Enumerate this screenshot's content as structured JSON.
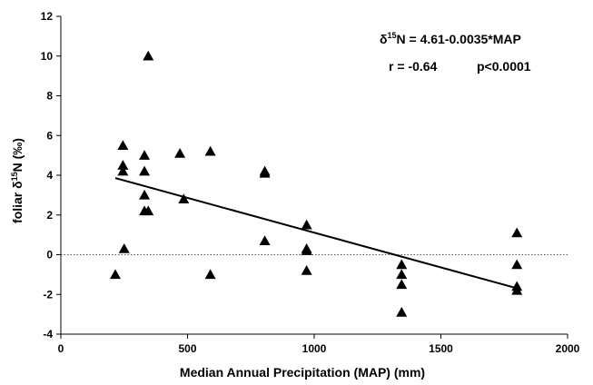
{
  "chart_data": {
    "type": "scatter",
    "xlabel": "Median Annual Precipitation (MAP) (mm)",
    "ylabel": {
      "pre": "foliar δ",
      "sup": "15",
      "post": "N (‰)"
    },
    "xlim": [
      0,
      2000
    ],
    "ylim": [
      -4,
      12
    ],
    "x_ticks": [
      0,
      500,
      1000,
      1500,
      2000
    ],
    "y_ticks": [
      -4,
      -2,
      0,
      2,
      4,
      6,
      8,
      10,
      12
    ],
    "grid": false,
    "reference_line_y": 0,
    "marker": "filled-triangle",
    "points": [
      {
        "x": 215,
        "y": -1.0
      },
      {
        "x": 245,
        "y": 5.5
      },
      {
        "x": 245,
        "y": 4.5
      },
      {
        "x": 245,
        "y": 4.2
      },
      {
        "x": 250,
        "y": 0.3
      },
      {
        "x": 330,
        "y": 5.0
      },
      {
        "x": 330,
        "y": 4.2
      },
      {
        "x": 330,
        "y": 3.0
      },
      {
        "x": 330,
        "y": 2.2
      },
      {
        "x": 345,
        "y": 2.2
      },
      {
        "x": 345,
        "y": 10.0
      },
      {
        "x": 470,
        "y": 5.1
      },
      {
        "x": 485,
        "y": 2.8
      },
      {
        "x": 590,
        "y": 5.2
      },
      {
        "x": 590,
        "y": -1.0
      },
      {
        "x": 805,
        "y": 4.2
      },
      {
        "x": 805,
        "y": 4.1
      },
      {
        "x": 805,
        "y": 0.7
      },
      {
        "x": 970,
        "y": 1.5
      },
      {
        "x": 970,
        "y": 0.3
      },
      {
        "x": 970,
        "y": 0.2
      },
      {
        "x": 970,
        "y": -0.8
      },
      {
        "x": 1345,
        "y": -0.5
      },
      {
        "x": 1345,
        "y": -1.0
      },
      {
        "x": 1345,
        "y": -1.5
      },
      {
        "x": 1345,
        "y": -2.9
      },
      {
        "x": 1800,
        "y": 1.1
      },
      {
        "x": 1800,
        "y": -0.5
      },
      {
        "x": 1800,
        "y": -1.6
      },
      {
        "x": 1800,
        "y": -1.8
      }
    ],
    "trendline": {
      "x": [
        215,
        1800
      ],
      "intercept": 4.61,
      "slope": -0.0035
    },
    "annotations": {
      "equation": {
        "pre": "δ",
        "sup": "15",
        "post": "N = 4.61-0.0035*MAP"
      },
      "r": "r = -0.64",
      "p": "p<0.0001"
    }
  }
}
